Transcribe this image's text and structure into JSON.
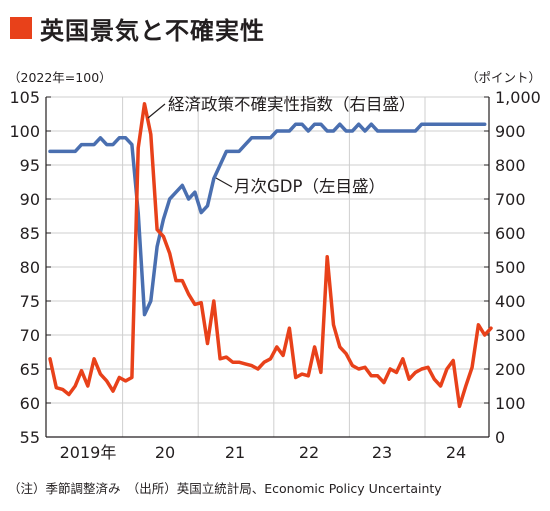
{
  "colors": {
    "title_mark": "#e8411a",
    "gdp": "#4a6fb0",
    "epu": "#e8411a",
    "axis": "#231f20",
    "grid": "#cfcfcf"
  },
  "title": "英国景気と不確実性",
  "footnote": "（注）季節調整済み　（出所）英国立統計局、Economic Policy Uncertainty",
  "chart_data": {
    "type": "line",
    "x_tick_labels": [
      "2019年",
      "20",
      "21",
      "22",
      "23",
      "24"
    ],
    "left_axis": {
      "unit_label": "（2022年=100）",
      "ylim": [
        55,
        105
      ],
      "ticks": [
        "55",
        "60",
        "65",
        "70",
        "75",
        "80",
        "85",
        "90",
        "95",
        "100",
        "105"
      ]
    },
    "right_axis": {
      "unit_label": "（ポイント）",
      "ylim": [
        0,
        1000
      ],
      "ticks": [
        "0",
        "100",
        "200",
        "300",
        "400",
        "500",
        "600",
        "700",
        "800",
        "900",
        "1,000"
      ]
    },
    "grid": true,
    "series": [
      {
        "name": "月次GDP（左目盛）",
        "axis": "left",
        "start_month": "2019-01",
        "values": [
          97,
          97,
          97,
          97,
          97,
          98,
          98,
          98,
          99,
          98,
          98,
          99,
          99,
          98,
          88,
          73,
          75,
          83,
          87,
          90,
          91,
          92,
          90,
          91,
          88,
          89,
          93,
          95,
          97,
          97,
          97,
          98,
          99,
          99,
          99,
          99,
          100,
          100,
          100,
          101,
          101,
          100,
          101,
          101,
          100,
          100,
          101,
          100,
          100,
          101,
          100,
          101,
          100,
          100,
          100,
          100,
          100,
          100,
          100,
          101,
          101,
          101,
          101,
          101,
          101,
          101,
          101,
          101,
          101,
          101
        ]
      },
      {
        "name": "経済政策不確実性指数（右目盛）",
        "axis": "right",
        "start_month": "2019-01",
        "values": [
          230,
          145,
          140,
          125,
          150,
          195,
          150,
          230,
          185,
          165,
          135,
          175,
          165,
          175,
          850,
          980,
          890,
          610,
          590,
          540,
          460,
          460,
          420,
          390,
          395,
          275,
          400,
          230,
          235,
          220,
          220,
          215,
          210,
          200,
          220,
          230,
          265,
          240,
          320,
          175,
          185,
          180,
          265,
          190,
          530,
          330,
          265,
          245,
          210,
          200,
          205,
          180,
          180,
          160,
          200,
          190,
          230,
          170,
          190,
          200,
          205,
          170,
          150,
          200,
          225,
          90,
          150,
          205,
          330,
          300,
          320
        ]
      }
    ],
    "annotations": [
      {
        "text": "経済政策不確実性指数（右目盛）",
        "series": 1
      },
      {
        "text": "月次GDP（左目盛）",
        "series": 0
      }
    ]
  }
}
